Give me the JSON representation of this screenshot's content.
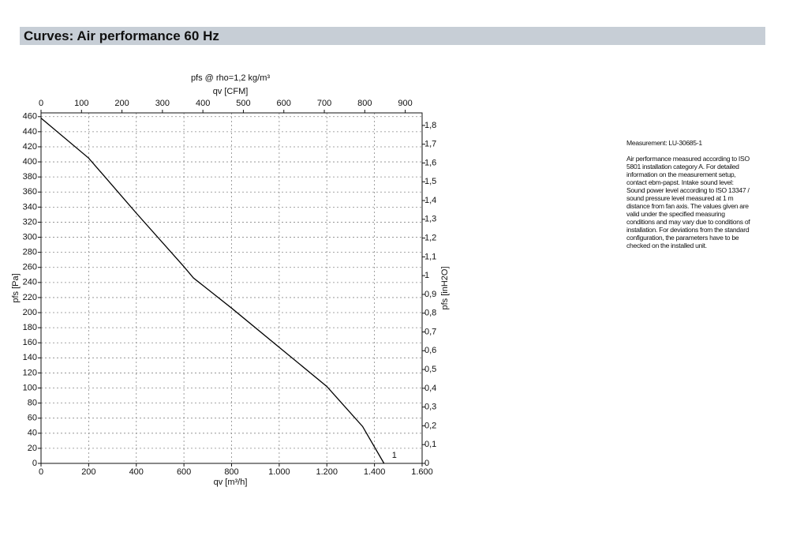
{
  "header": {
    "title": "Curves: Air performance 60 Hz"
  },
  "notes": {
    "measurement": "Measurement: LU-30685-1",
    "lines": [
      "Air performance measured according to ISO",
      "5801 installation category A. For detailed",
      "information on the measurement setup,",
      "contact ebm-papst. Intake sound level:",
      "Sound power level according to ISO 13347 /",
      "sound pressure level measured at 1 m",
      "distance from fan axis. The values given are",
      "valid under the specified measuring",
      "conditions and may vary due to conditions of",
      "installation. For deviations from the standard",
      "configuration, the parameters have to be",
      "checked on the installed unit."
    ]
  },
  "chart_data": {
    "type": "line",
    "title": "pfs @ rho=1,2 kg/m³",
    "xlabel": "qv [m³/h]",
    "x2label": "qv [CFM]",
    "ylabel": "pfs [Pa]",
    "y2label": "pfs [inH2O]",
    "x": [
      0,
      200,
      400,
      600,
      640,
      800,
      1000,
      1200,
      1350,
      1440
    ],
    "series": [
      {
        "name": "1",
        "color": "#000000",
        "values": [
          458,
          405,
          332,
          261,
          246,
          206,
          154,
          102,
          49,
          0
        ]
      }
    ],
    "xlim": [
      0,
      1600
    ],
    "xticks": [
      0,
      200,
      400,
      600,
      800,
      {
        "value": 1000,
        "label": "1.000"
      },
      {
        "value": 1200,
        "label": "1.200"
      },
      {
        "value": 1400,
        "label": "1.400"
      },
      {
        "value": 1600,
        "label": "1.600"
      }
    ],
    "x2lim": [
      0,
      941.7
    ],
    "x2ticks": [
      0,
      100,
      200,
      300,
      400,
      500,
      600,
      700,
      800,
      900
    ],
    "ylim": [
      0,
      465
    ],
    "yticks": [
      0,
      20,
      40,
      60,
      80,
      100,
      120,
      140,
      160,
      180,
      200,
      220,
      240,
      260,
      280,
      300,
      320,
      340,
      360,
      380,
      400,
      420,
      440,
      460
    ],
    "y2lim": [
      0,
      1.8668
    ],
    "y2ticks": [
      0,
      {
        "value": 0.1,
        "label": "0,1"
      },
      {
        "value": 0.2,
        "label": "0,2"
      },
      {
        "value": 0.3,
        "label": "0,3"
      },
      {
        "value": 0.4,
        "label": "0,4"
      },
      {
        "value": 0.5,
        "label": "0,5"
      },
      {
        "value": 0.6,
        "label": "0,6"
      },
      {
        "value": 0.7,
        "label": "0,7"
      },
      {
        "value": 0.8,
        "label": "0,8"
      },
      {
        "value": 0.9,
        "label": "0,9"
      },
      1,
      {
        "value": 1.1,
        "label": "1,1"
      },
      {
        "value": 1.2,
        "label": "1,2"
      },
      {
        "value": 1.3,
        "label": "1,3"
      },
      {
        "value": 1.4,
        "label": "1,4"
      },
      {
        "value": 1.5,
        "label": "1,5"
      },
      {
        "value": 1.6,
        "label": "1,6"
      },
      {
        "value": 1.7,
        "label": "1,7"
      },
      {
        "value": 1.8,
        "label": "1,8"
      }
    ],
    "grid": true
  }
}
